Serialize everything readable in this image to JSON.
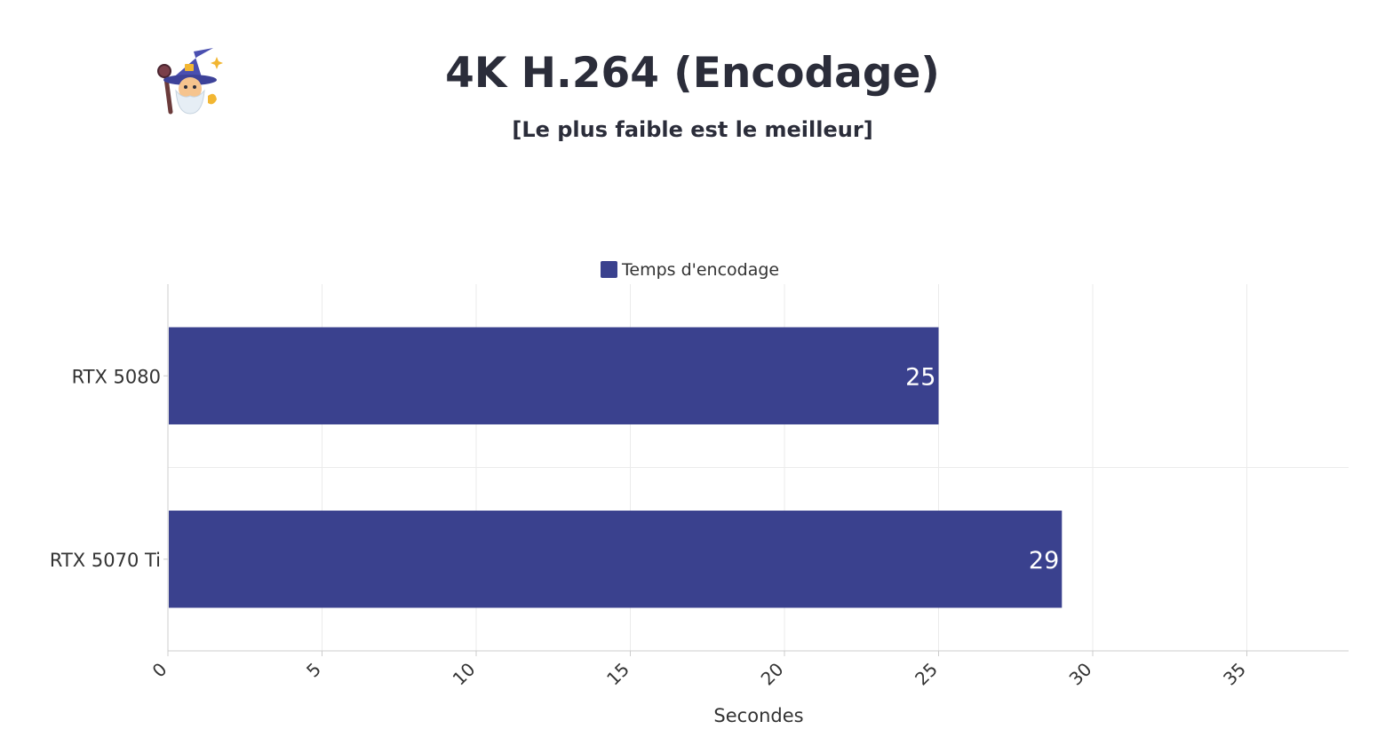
{
  "header": {
    "title": "4K H.264 (Encodage)",
    "subtitle": "[Le plus faible est le meilleur]",
    "logo_icon": "wizard-icon"
  },
  "chart_data": {
    "type": "bar",
    "orientation": "horizontal",
    "categories": [
      "RTX 5080",
      "RTX 5070 Ti"
    ],
    "series": [
      {
        "name": "Temps d'encodage",
        "values": [
          25,
          29
        ],
        "color": "#3a418e"
      }
    ],
    "xlabel": "Secondes",
    "ylabel": "",
    "xlim": [
      0,
      38.3
    ],
    "xticks": [
      0,
      5,
      10,
      15,
      20,
      25,
      30,
      35
    ],
    "grid": true,
    "legend_position": "top-center",
    "data_labels": true
  }
}
